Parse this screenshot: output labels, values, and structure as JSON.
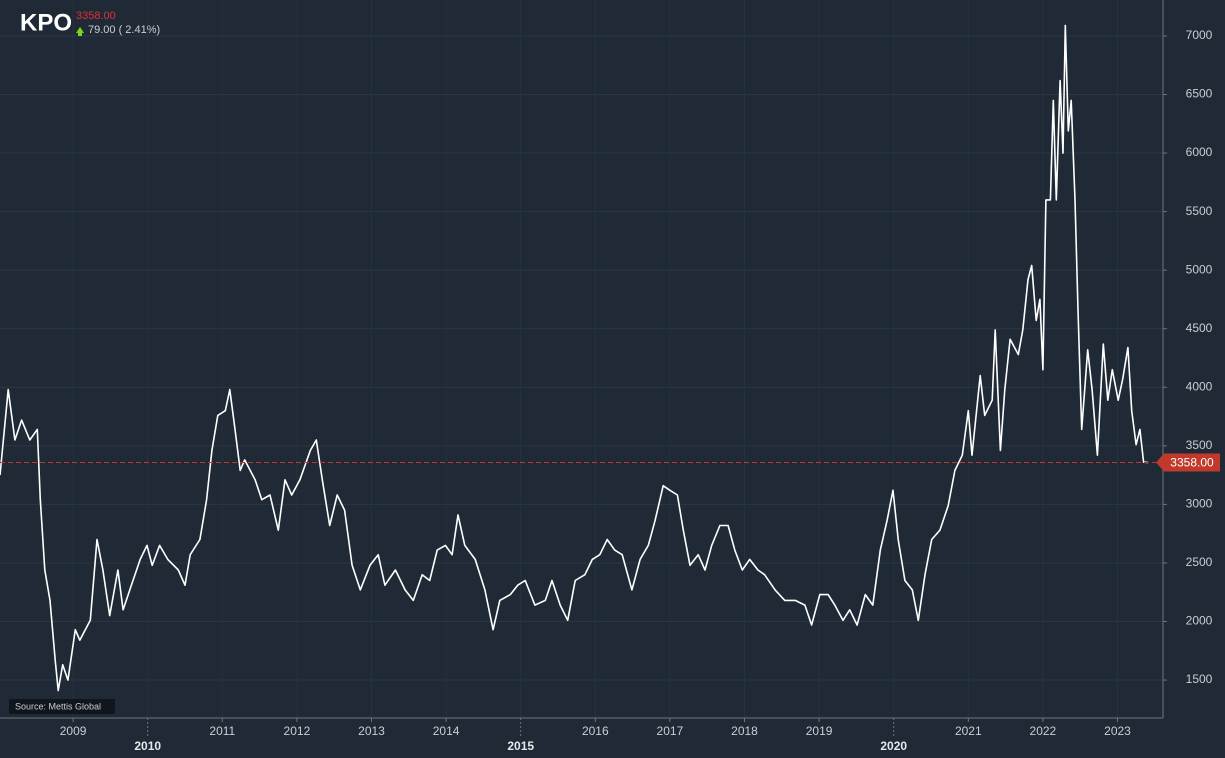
{
  "header": {
    "symbol": "KPO",
    "change": "79.00 ( 2.41%)"
  },
  "source": "Source: Mettis Global",
  "chart_data": {
    "type": "line",
    "x": [
      2008.02,
      2008.13,
      2008.22,
      2008.31,
      2008.42,
      2008.52,
      2008.56,
      2008.62,
      2008.69,
      2008.76,
      2008.8,
      2008.86,
      2008.93,
      2009.03,
      2009.09,
      2009.23,
      2009.32,
      2009.4,
      2009.49,
      2009.6,
      2009.67,
      2009.76,
      2009.9,
      2009.99,
      2010.06,
      2010.16,
      2010.27,
      2010.41,
      2010.5,
      2010.57,
      2010.7,
      2010.79,
      2010.86,
      2010.94,
      2011.04,
      2011.1,
      2011.17,
      2011.24,
      2011.3,
      2011.44,
      2011.53,
      2011.64,
      2011.75,
      2011.84,
      2011.93,
      2012.04,
      2012.18,
      2012.26,
      2012.34,
      2012.44,
      2012.54,
      2012.64,
      2012.74,
      2012.85,
      2012.98,
      2013.09,
      2013.18,
      2013.32,
      2013.45,
      2013.56,
      2013.68,
      2013.78,
      2013.88,
      2013.99,
      2014.08,
      2014.16,
      2014.25,
      2014.39,
      2014.52,
      2014.63,
      2014.72,
      2014.86,
      2014.96,
      2015.06,
      2015.19,
      2015.33,
      2015.42,
      2015.53,
      2015.63,
      2015.73,
      2015.86,
      2015.96,
      2016.06,
      2016.16,
      2016.26,
      2016.36,
      2016.49,
      2016.6,
      2016.71,
      2016.8,
      2016.91,
      2017.0,
      2017.1,
      2017.18,
      2017.27,
      2017.38,
      2017.47,
      2017.56,
      2017.67,
      2017.78,
      2017.87,
      2017.97,
      2018.07,
      2018.18,
      2018.27,
      2018.41,
      2018.54,
      2018.68,
      2018.81,
      2018.9,
      2019.01,
      2019.12,
      2019.21,
      2019.32,
      2019.41,
      2019.51,
      2019.62,
      2019.72,
      2019.82,
      2019.91,
      2019.99,
      2020.06,
      2020.15,
      2020.25,
      2020.33,
      2020.42,
      2020.51,
      2020.62,
      2020.73,
      2020.82,
      2020.92,
      2021.0,
      2021.05,
      2021.16,
      2021.22,
      2021.32,
      2021.36,
      2021.43,
      2021.49,
      2021.56,
      2021.67,
      2021.73,
      2021.8,
      2021.85,
      2021.91,
      2021.96,
      2022.0,
      2022.04,
      2022.1,
      2022.14,
      2022.18,
      2022.23,
      2022.27,
      2022.3,
      2022.34,
      2022.38,
      2022.43,
      2022.47,
      2022.52,
      2022.6,
      2022.66,
      2022.73,
      2022.81,
      2022.87,
      2022.93,
      2023.01,
      2023.07,
      2023.14,
      2023.19,
      2023.25,
      2023.3,
      2023.35,
      2023.41
    ],
    "series": [
      {
        "color": "#ffffff",
        "values": [
          3250,
          3980,
          3550,
          3720,
          3550,
          3640,
          3040,
          2440,
          2180,
          1670,
          1410,
          1630,
          1500,
          1930,
          1840,
          2010,
          2700,
          2440,
          2050,
          2440,
          2100,
          2270,
          2530,
          2650,
          2480,
          2650,
          2530,
          2440,
          2310,
          2570,
          2700,
          3040,
          3460,
          3760,
          3800,
          3980,
          3640,
          3290,
          3380,
          3210,
          3040,
          3080,
          2780,
          3210,
          3080,
          3210,
          3460,
          3550,
          3210,
          2820,
          3080,
          2950,
          2480,
          2270,
          2480,
          2570,
          2310,
          2440,
          2270,
          2180,
          2400,
          2350,
          2610,
          2650,
          2570,
          2910,
          2650,
          2530,
          2270,
          1930,
          2180,
          2230,
          2310,
          2350,
          2140,
          2180,
          2350,
          2140,
          2010,
          2350,
          2400,
          2530,
          2570,
          2700,
          2610,
          2570,
          2270,
          2530,
          2650,
          2860,
          3160,
          3120,
          3080,
          2780,
          2480,
          2570,
          2440,
          2650,
          2820,
          2820,
          2610,
          2440,
          2530,
          2440,
          2400,
          2270,
          2180,
          2180,
          2140,
          1970,
          2230,
          2230,
          2140,
          2010,
          2100,
          1970,
          2230,
          2140,
          2610,
          2860,
          3120,
          2700,
          2350,
          2270,
          2010,
          2400,
          2700,
          2780,
          2990,
          3290,
          3420,
          3800,
          3420,
          4100,
          3760,
          3890,
          4490,
          3460,
          3980,
          4410,
          4280,
          4490,
          4920,
          5040,
          4570,
          4750,
          4150,
          5600,
          5600,
          6450,
          5600,
          6620,
          6000,
          7090,
          6190,
          6450,
          5600,
          4660,
          3640,
          4320,
          3980,
          3420,
          4370,
          3890,
          4150,
          3890,
          4070,
          4340,
          3800,
          3510,
          3640,
          3360,
          3358
        ]
      }
    ],
    "xlim": [
      2008.02,
      2023.61
    ],
    "xticks": [
      2009,
      2010,
      2011,
      2012,
      2013,
      2014,
      2015,
      2016,
      2017,
      2018,
      2019,
      2020,
      2021,
      2022,
      2023
    ],
    "ylim": [
      1176,
      7307
    ],
    "yticks": [
      1500,
      2000,
      2500,
      3000,
      3500,
      4000,
      4500,
      5000,
      5500,
      6000,
      6500,
      7000
    ],
    "grid": true,
    "reference_line": {
      "value": 3358,
      "label": "3358.00",
      "color": "#c0392b"
    }
  }
}
